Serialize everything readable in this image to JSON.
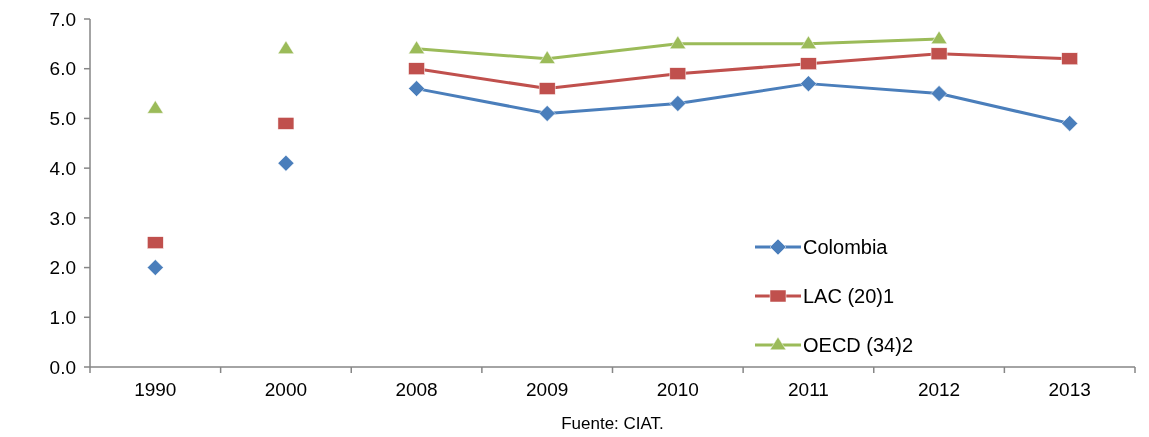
{
  "chart_data": {
    "type": "line",
    "categories": [
      "1990",
      "2000",
      "2008",
      "2009",
      "2010",
      "2011",
      "2012",
      "2013"
    ],
    "ylim": [
      0,
      7
    ],
    "yticks": [
      {
        "value": 0,
        "label": "0.0"
      },
      {
        "value": 1,
        "label": "1.0"
      },
      {
        "value": 2,
        "label": "2.0"
      },
      {
        "value": 3,
        "label": "3.0"
      },
      {
        "value": 4,
        "label": "4.0"
      },
      {
        "value": 5,
        "label": "5.0"
      },
      {
        "value": 6,
        "label": "6.0"
      },
      {
        "value": 7,
        "label": "7.0"
      }
    ],
    "grid": false,
    "legend": "bottom right",
    "series": [
      {
        "name": "Colombia",
        "color": "#4a7ebb",
        "marker": "diamond",
        "values": [
          null,
          null,
          5.6,
          5.1,
          5.3,
          5.7,
          5.5,
          4.9
        ]
      },
      {
        "name": "LAC (20)1",
        "color": "#c0504d",
        "marker": "square",
        "values": [
          null,
          null,
          6.0,
          5.6,
          5.9,
          6.1,
          6.3,
          6.2
        ]
      },
      {
        "name": "OECD (34)2",
        "color": "#9bbb59",
        "marker": "triangle",
        "values": [
          null,
          null,
          6.4,
          6.2,
          6.5,
          6.5,
          6.6,
          null
        ]
      },
      {
        "type": "scatter",
        "color": "#4a7ebb",
        "marker": "diamond",
        "values": [
          2.0,
          4.1,
          null,
          null,
          null,
          null,
          null,
          null
        ]
      },
      {
        "type": "scatter",
        "color": "#c0504d",
        "marker": "square",
        "values": [
          2.5,
          4.9,
          null,
          null,
          null,
          null,
          null,
          null
        ]
      },
      {
        "type": "scatter",
        "color": "#9bbb59",
        "marker": "triangle",
        "values": [
          5.2,
          6.4,
          null,
          null,
          null,
          null,
          null,
          null
        ]
      }
    ],
    "annotations": [
      "Fuente: CIAT."
    ]
  }
}
